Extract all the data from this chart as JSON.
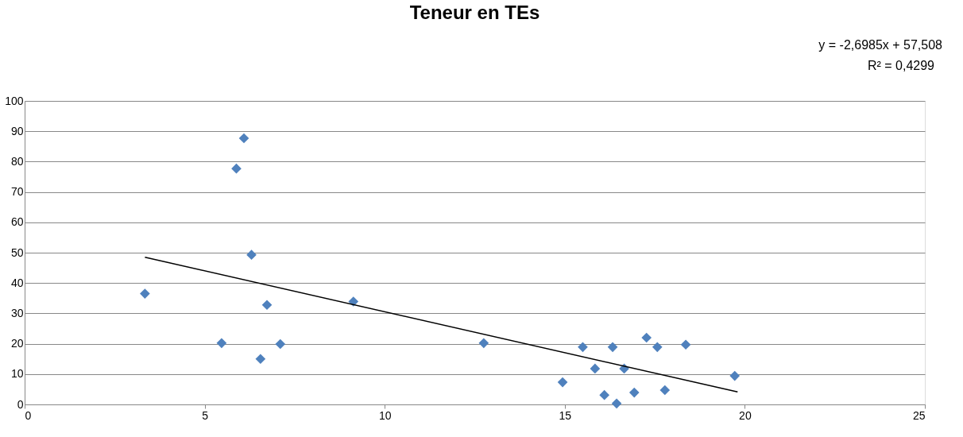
{
  "chart_data": {
    "type": "scatter",
    "title": "Teneur en TEs",
    "annotations": [
      "y = -2,6985x + 57,508",
      "R² = 0,4299"
    ],
    "xlim": [
      0,
      25
    ],
    "xticks": [
      0,
      5,
      10,
      15,
      20,
      25
    ],
    "ylim": [
      0,
      100
    ],
    "yticks": [
      0,
      10,
      20,
      30,
      40,
      50,
      60,
      70,
      80,
      90,
      100
    ],
    "grid": "y",
    "series": [
      {
        "color": "#4f81bd",
        "marker": "diamond",
        "x": [
          3.34,
          5.47,
          5.88,
          6.09,
          6.3,
          6.55,
          6.73,
          7.1,
          9.13,
          12.75,
          14.94,
          15.5,
          15.84,
          16.1,
          16.33,
          16.44,
          16.65,
          16.93,
          17.27,
          17.57,
          17.78,
          18.36,
          19.72
        ],
        "values": [
          36.5,
          20.2,
          77.7,
          87.7,
          49.3,
          15.0,
          32.8,
          19.9,
          33.9,
          20.2,
          7.3,
          18.9,
          11.8,
          3.1,
          18.9,
          0.3,
          11.8,
          3.9,
          22.0,
          18.9,
          4.7,
          19.7,
          9.4
        ]
      },
      {
        "type": "line",
        "color": "#000000",
        "marker": "none",
        "line_style": "solid",
        "x": [
          3.34,
          19.8
        ],
        "values": [
          48.5,
          4.1
        ]
      }
    ]
  }
}
